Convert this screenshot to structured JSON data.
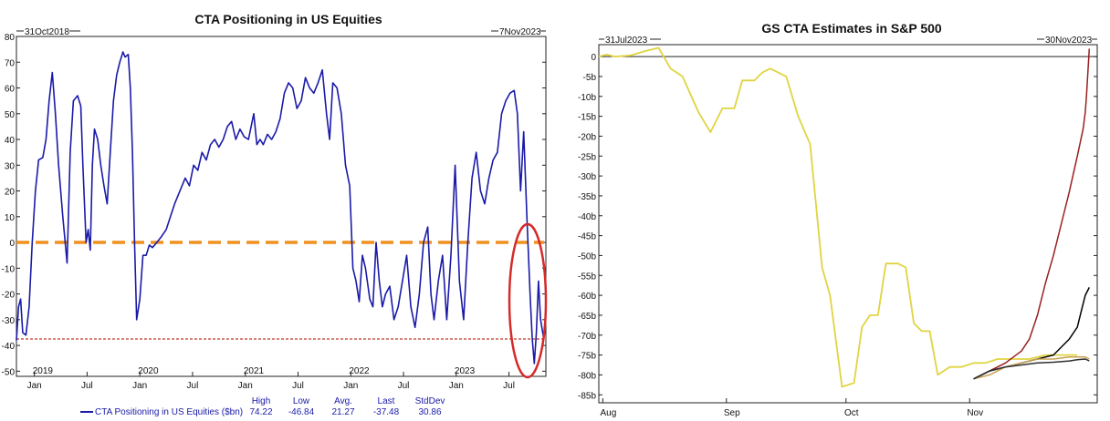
{
  "chart_data": [
    {
      "type": "line",
      "title": "CTA Positioning in US Equities",
      "start_label": "31Oct2018",
      "end_label": "7Nov2023",
      "ylim": [
        -52,
        80
      ],
      "yticks": [
        "80",
        "70",
        "60",
        "50",
        "40",
        "30",
        "20",
        "10",
        "0",
        "-10",
        "-20",
        "-30",
        "-40",
        "-50"
      ],
      "ytick_values": [
        80,
        70,
        60,
        50,
        40,
        30,
        20,
        10,
        0,
        -10,
        -20,
        -30,
        -40,
        -50
      ],
      "year_labels": [
        {
          "label": "2019",
          "t": 0.25
        },
        {
          "label": "2020",
          "t": 1.25
        },
        {
          "label": "2021",
          "t": 2.25
        },
        {
          "label": "2022",
          "t": 3.25
        },
        {
          "label": "2023",
          "t": 4.25
        }
      ],
      "month_ticks": [
        {
          "label": "Jan",
          "t": 0.17
        },
        {
          "label": "Jul",
          "t": 0.67
        },
        {
          "label": "Jan",
          "t": 1.17
        },
        {
          "label": "Jul",
          "t": 1.67
        },
        {
          "label": "Jan",
          "t": 2.17
        },
        {
          "label": "Jul",
          "t": 2.67
        },
        {
          "label": "Jan",
          "t": 3.17
        },
        {
          "label": "Jul",
          "t": 3.67
        },
        {
          "label": "Jan",
          "t": 4.17
        },
        {
          "label": "Jul",
          "t": 4.67
        }
      ],
      "t_range": [
        0,
        5.02
      ],
      "grid": false,
      "reference_lines": [
        {
          "name": "zero",
          "y": 0,
          "color": "#f0901e"
        },
        {
          "name": "last",
          "y": -37.48,
          "color": "#c0392b"
        }
      ],
      "series": [
        {
          "name": "CTA Positioning in US Equities ($bn)",
          "color": "#1a1aa8",
          "points": [
            [
              0.0,
              -38
            ],
            [
              0.02,
              -25
            ],
            [
              0.04,
              -22
            ],
            [
              0.06,
              -35
            ],
            [
              0.09,
              -36
            ],
            [
              0.12,
              -25
            ],
            [
              0.15,
              0
            ],
            [
              0.18,
              20
            ],
            [
              0.21,
              32
            ],
            [
              0.25,
              33
            ],
            [
              0.28,
              40
            ],
            [
              0.31,
              55
            ],
            [
              0.34,
              66
            ],
            [
              0.37,
              50
            ],
            [
              0.4,
              30
            ],
            [
              0.44,
              10
            ],
            [
              0.48,
              -8
            ],
            [
              0.51,
              35
            ],
            [
              0.54,
              55
            ],
            [
              0.58,
              57
            ],
            [
              0.61,
              53
            ],
            [
              0.63,
              30
            ],
            [
              0.66,
              0
            ],
            [
              0.68,
              5
            ],
            [
              0.7,
              -3
            ],
            [
              0.72,
              30
            ],
            [
              0.74,
              44
            ],
            [
              0.77,
              40
            ],
            [
              0.8,
              30
            ],
            [
              0.83,
              22
            ],
            [
              0.86,
              15
            ],
            [
              0.89,
              35
            ],
            [
              0.92,
              55
            ],
            [
              0.95,
              65
            ],
            [
              0.98,
              70
            ],
            [
              1.01,
              74
            ],
            [
              1.03,
              72
            ],
            [
              1.06,
              73
            ],
            [
              1.08,
              60
            ],
            [
              1.1,
              35
            ],
            [
              1.12,
              0
            ],
            [
              1.14,
              -30
            ],
            [
              1.17,
              -22
            ],
            [
              1.2,
              -5
            ],
            [
              1.23,
              -5
            ],
            [
              1.26,
              -1
            ],
            [
              1.29,
              -2
            ],
            [
              1.33,
              0
            ],
            [
              1.37,
              2
            ],
            [
              1.42,
              5
            ],
            [
              1.46,
              10
            ],
            [
              1.5,
              15
            ],
            [
              1.55,
              20
            ],
            [
              1.6,
              25
            ],
            [
              1.64,
              22
            ],
            [
              1.68,
              30
            ],
            [
              1.72,
              28
            ],
            [
              1.76,
              35
            ],
            [
              1.8,
              32
            ],
            [
              1.84,
              38
            ],
            [
              1.88,
              40
            ],
            [
              1.92,
              37
            ],
            [
              1.96,
              40
            ],
            [
              2.0,
              45
            ],
            [
              2.04,
              47
            ],
            [
              2.08,
              40
            ],
            [
              2.12,
              44
            ],
            [
              2.16,
              41
            ],
            [
              2.2,
              40
            ],
            [
              2.25,
              50
            ],
            [
              2.28,
              38
            ],
            [
              2.31,
              40
            ],
            [
              2.34,
              38
            ],
            [
              2.38,
              42
            ],
            [
              2.42,
              40
            ],
            [
              2.46,
              43
            ],
            [
              2.5,
              48
            ],
            [
              2.54,
              58
            ],
            [
              2.58,
              62
            ],
            [
              2.62,
              60
            ],
            [
              2.66,
              52
            ],
            [
              2.7,
              55
            ],
            [
              2.74,
              64
            ],
            [
              2.78,
              60
            ],
            [
              2.82,
              58
            ],
            [
              2.86,
              62
            ],
            [
              2.9,
              67
            ],
            [
              2.94,
              50
            ],
            [
              2.97,
              40
            ],
            [
              3.0,
              62
            ],
            [
              3.04,
              60
            ],
            [
              3.08,
              50
            ],
            [
              3.12,
              30
            ],
            [
              3.16,
              22
            ],
            [
              3.19,
              -10
            ],
            [
              3.22,
              -15
            ],
            [
              3.25,
              -23
            ],
            [
              3.28,
              -5
            ],
            [
              3.31,
              -10
            ],
            [
              3.35,
              -22
            ],
            [
              3.38,
              -25
            ],
            [
              3.41,
              0
            ],
            [
              3.44,
              -15
            ],
            [
              3.47,
              -25
            ],
            [
              3.5,
              -20
            ],
            [
              3.54,
              -17
            ],
            [
              3.58,
              -30
            ],
            [
              3.62,
              -25
            ],
            [
              3.66,
              -15
            ],
            [
              3.7,
              -5
            ],
            [
              3.74,
              -25
            ],
            [
              3.78,
              -33
            ],
            [
              3.82,
              -20
            ],
            [
              3.86,
              0
            ],
            [
              3.9,
              6
            ],
            [
              3.93,
              -20
            ],
            [
              3.96,
              -30
            ],
            [
              4.0,
              -15
            ],
            [
              4.04,
              -5
            ],
            [
              4.08,
              -30
            ],
            [
              4.12,
              -5
            ],
            [
              4.16,
              30
            ],
            [
              4.2,
              -15
            ],
            [
              4.24,
              -30
            ],
            [
              4.28,
              0
            ],
            [
              4.32,
              25
            ],
            [
              4.36,
              35
            ],
            [
              4.4,
              20
            ],
            [
              4.44,
              15
            ],
            [
              4.48,
              25
            ],
            [
              4.52,
              32
            ],
            [
              4.56,
              35
            ],
            [
              4.6,
              50
            ],
            [
              4.64,
              55
            ],
            [
              4.68,
              58
            ],
            [
              4.72,
              59
            ],
            [
              4.75,
              50
            ],
            [
              4.78,
              20
            ],
            [
              4.81,
              43
            ],
            [
              4.84,
              10
            ],
            [
              4.87,
              -20
            ],
            [
              4.89,
              -37
            ],
            [
              4.91,
              -47
            ],
            [
              4.93,
              -35
            ],
            [
              4.95,
              -15
            ],
            [
              4.97,
              -30
            ],
            [
              5.0,
              -37.48
            ]
          ]
        }
      ],
      "stats_headers": [
        "High",
        "Low",
        "Avg.",
        "Last",
        "StdDev"
      ],
      "stats": [
        {
          "name": "CTA Positioning in US Equities ($bn)",
          "values": [
            "74.22",
            "-46.84",
            "21.27",
            "-37.48",
            "30.86"
          ]
        }
      ]
    },
    {
      "type": "line",
      "title": "GS CTA Estimates in S&P 500",
      "start_label": "31Jul2023",
      "end_label": "30Nov2023",
      "ylim": [
        -87,
        3
      ],
      "yticks": [
        "0",
        "-5b",
        "-10b",
        "-15b",
        "-20b",
        "-25b",
        "-30b",
        "-35b",
        "-40b",
        "-45b",
        "-50b",
        "-55b",
        "-60b",
        "-65b",
        "-70b",
        "-75b",
        "-80b",
        "-85b"
      ],
      "ytick_values": [
        0,
        -5,
        -10,
        -15,
        -20,
        -25,
        -30,
        -35,
        -40,
        -45,
        -50,
        -55,
        -60,
        -65,
        -70,
        -75,
        -80,
        -85
      ],
      "xlim": [
        0,
        122
      ],
      "x_ticks": [
        {
          "label": "Aug",
          "x": 1
        },
        {
          "label": "Sep",
          "x": 32
        },
        {
          "label": "Oct",
          "x": 62
        },
        {
          "label": "Nov",
          "x": 93
        }
      ],
      "grid": false,
      "reference_lines": [
        {
          "name": "zero",
          "y": 0,
          "color": "#000000"
        }
      ],
      "series": [
        {
          "color": "#e0d440",
          "points": [
            [
              0,
              0
            ],
            [
              2,
              0.5
            ],
            [
              4,
              0
            ],
            [
              8,
              0.3
            ],
            [
              12,
              1.5
            ],
            [
              15,
              2.2
            ],
            [
              18,
              -3
            ],
            [
              21,
              -5
            ],
            [
              25,
              -14
            ],
            [
              28,
              -19
            ],
            [
              31,
              -13
            ],
            [
              34,
              -13
            ],
            [
              36,
              -6
            ],
            [
              39,
              -6
            ],
            [
              41,
              -4
            ],
            [
              43,
              -3
            ],
            [
              47,
              -5
            ],
            [
              50,
              -15
            ],
            [
              53,
              -22
            ],
            [
              56,
              -53
            ],
            [
              58,
              -60
            ],
            [
              61,
              -83
            ],
            [
              64,
              -82
            ],
            [
              66,
              -68
            ],
            [
              68,
              -65
            ],
            [
              70,
              -65
            ],
            [
              72,
              -52
            ],
            [
              75,
              -52
            ],
            [
              77,
              -53
            ],
            [
              79,
              -67
            ],
            [
              81,
              -69
            ],
            [
              83,
              -69
            ],
            [
              85,
              -80
            ],
            [
              88,
              -78
            ],
            [
              91,
              -78
            ],
            [
              94,
              -77
            ],
            [
              97,
              -77
            ],
            [
              100,
              -76
            ],
            [
              104,
              -76
            ],
            [
              108,
              -76
            ],
            [
              112,
              -75
            ],
            [
              116,
              -75
            ],
            [
              120,
              -75
            ]
          ]
        },
        {
          "color": "#9a2020",
          "points": [
            [
              94,
              -81
            ],
            [
              98,
              -79
            ],
            [
              102,
              -77
            ],
            [
              106,
              -74
            ],
            [
              108,
              -71
            ],
            [
              110,
              -65
            ],
            [
              112,
              -57
            ],
            [
              114,
              -50
            ],
            [
              116,
              -42
            ],
            [
              118,
              -34
            ],
            [
              120,
              -25
            ],
            [
              121.5,
              -18
            ],
            [
              122,
              -14
            ],
            [
              122.3,
              -10
            ],
            [
              122.6,
              -5
            ],
            [
              123,
              2
            ]
          ]
        },
        {
          "color": "#000000",
          "points": [
            [
              94,
              -81
            ],
            [
              98,
              -79
            ],
            [
              102,
              -78
            ],
            [
              106,
              -77
            ],
            [
              110,
              -76
            ],
            [
              114,
              -75
            ],
            [
              116,
              -73
            ],
            [
              118,
              -71
            ],
            [
              120,
              -68
            ],
            [
              121,
              -64
            ],
            [
              122,
              -60
            ],
            [
              123,
              -58
            ]
          ]
        },
        {
          "color": "#c8a050",
          "points": [
            [
              94,
              -81
            ],
            [
              98,
              -80
            ],
            [
              102,
              -78
            ],
            [
              106,
              -77
            ],
            [
              110,
              -76
            ],
            [
              114,
              -76
            ],
            [
              118,
              -75.5
            ],
            [
              120,
              -75.5
            ],
            [
              122,
              -75.5
            ],
            [
              123,
              -76
            ]
          ]
        },
        {
          "color": "#303030",
          "points": [
            [
              94,
              -81
            ],
            [
              98,
              -79
            ],
            [
              102,
              -78
            ],
            [
              106,
              -77.5
            ],
            [
              110,
              -77
            ],
            [
              114,
              -76.8
            ],
            [
              118,
              -76.5
            ],
            [
              120,
              -76.2
            ],
            [
              122,
              -76
            ],
            [
              123,
              -76.5
            ]
          ]
        }
      ]
    }
  ]
}
